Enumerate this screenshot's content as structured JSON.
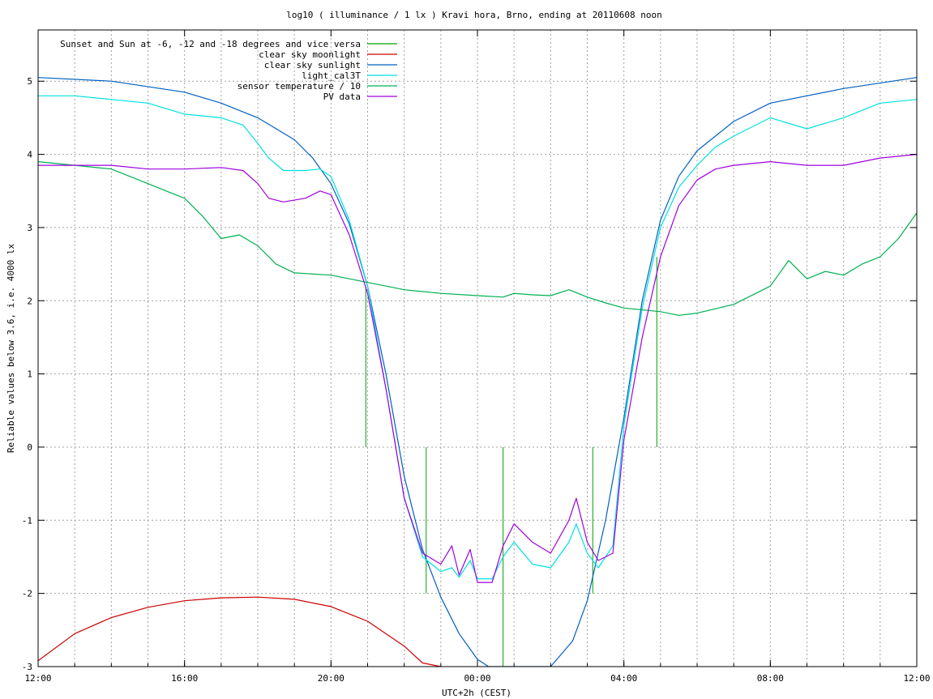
{
  "chart_data": {
    "type": "line",
    "title": "log10 ( illuminance / 1 lx ) Kravi hora, Brno, ending at 20110608 noon",
    "xlabel": "UTC+2h (CEST)",
    "ylabel": "Reliable values below 3.6, i.e. 4000 lx",
    "xlim": [
      12,
      36
    ],
    "ylim": [
      -3,
      5.7
    ],
    "grid": true,
    "legend_position": "top-left",
    "x_ticks": [
      {
        "v": 12,
        "label": "12:00"
      },
      {
        "v": 16,
        "label": "16:00"
      },
      {
        "v": 20,
        "label": "20:00"
      },
      {
        "v": 24,
        "label": "00:00"
      },
      {
        "v": 28,
        "label": "04:00"
      },
      {
        "v": 32,
        "label": "08:00"
      },
      {
        "v": 36,
        "label": "12:00"
      }
    ],
    "x_minor_step": 1,
    "y_ticks": [
      {
        "v": -3,
        "label": "-3"
      },
      {
        "v": -2,
        "label": "-2"
      },
      {
        "v": -1,
        "label": "-1"
      },
      {
        "v": 0,
        "label": "0"
      },
      {
        "v": 1,
        "label": "1"
      },
      {
        "v": 2,
        "label": "2"
      },
      {
        "v": 3,
        "label": "3"
      },
      {
        "v": 4,
        "label": "4"
      },
      {
        "v": 5,
        "label": "5"
      }
    ],
    "series": [
      {
        "name": "Sunset and Sun at -6, -12 and -18 degrees and vice versa",
        "color": "#00a000",
        "style": "impulses",
        "x": [
          20.95,
          21.63,
          22.6,
          24.7,
          27.15,
          28.1,
          28.9
        ],
        "y": [
          2.2,
          0.0,
          -2.0,
          -3.0,
          -2.0,
          0.0,
          2.6
        ]
      },
      {
        "name": "clear sky moonlight",
        "color": "#cc0000",
        "style": "line",
        "x": [
          12,
          13,
          14,
          15,
          16,
          17,
          18,
          19,
          20,
          21,
          22,
          22.5,
          23
        ],
        "y": [
          -2.92,
          -2.55,
          -2.33,
          -2.19,
          -2.1,
          -2.06,
          -2.05,
          -2.08,
          -2.18,
          -2.38,
          -2.72,
          -2.95,
          -3.0
        ]
      },
      {
        "name": "clear sky sunlight",
        "color": "#0060c0",
        "style": "line",
        "x": [
          12,
          14,
          16,
          17,
          18,
          19,
          19.5,
          20,
          20.5,
          21,
          21.5,
          22,
          22.5,
          23,
          23.5,
          24,
          24.3,
          26,
          26.6,
          27,
          27.5,
          28,
          28.5,
          29,
          29.5,
          30,
          30.5,
          31,
          32,
          34,
          36
        ],
        "y": [
          5.05,
          5.0,
          4.85,
          4.7,
          4.5,
          4.2,
          3.95,
          3.6,
          3.05,
          2.2,
          1.0,
          -0.4,
          -1.4,
          -2.05,
          -2.55,
          -2.9,
          -3.0,
          -3.0,
          -2.65,
          -2.1,
          -1.0,
          0.4,
          2.0,
          3.1,
          3.7,
          4.05,
          4.25,
          4.45,
          4.7,
          4.9,
          5.05
        ]
      },
      {
        "name": "light_cal3T",
        "color": "#00e0e0",
        "style": "line",
        "x": [
          12,
          13,
          14,
          15,
          16,
          17,
          17.6,
          18,
          18.3,
          18.7,
          19.3,
          19.7,
          20,
          20.5,
          21,
          21.5,
          22,
          22.5,
          23,
          23.3,
          23.5,
          23.8,
          24,
          24.4,
          24.7,
          25,
          25.5,
          26,
          26.5,
          26.7,
          27,
          27.3,
          27.7,
          28,
          28.5,
          29,
          29.5,
          30,
          30.5,
          31,
          32,
          33,
          34,
          35,
          36
        ],
        "y": [
          4.8,
          4.8,
          4.75,
          4.7,
          4.55,
          4.5,
          4.4,
          4.15,
          3.95,
          3.78,
          3.78,
          3.8,
          3.7,
          3.1,
          2.2,
          0.8,
          -0.7,
          -1.5,
          -1.7,
          -1.65,
          -1.78,
          -1.55,
          -1.8,
          -1.8,
          -1.5,
          -1.3,
          -1.6,
          -1.65,
          -1.3,
          -1.05,
          -1.45,
          -1.65,
          -1.35,
          0.3,
          1.9,
          3.0,
          3.55,
          3.85,
          4.1,
          4.25,
          4.5,
          4.35,
          4.5,
          4.7,
          4.75
        ]
      },
      {
        "name": "sensor temperature / 10",
        "color": "#00b050",
        "style": "line",
        "x": [
          12,
          13,
          14,
          15,
          15.5,
          16,
          16.5,
          17,
          17.5,
          18,
          18.5,
          19,
          20,
          21,
          22,
          23,
          24,
          24.7,
          25,
          25.5,
          26,
          26.5,
          27,
          27.5,
          28,
          29,
          29.5,
          30,
          31,
          32,
          32.5,
          33,
          33.5,
          34,
          34.5,
          35,
          35.5,
          36
        ],
        "y": [
          3.9,
          3.85,
          3.8,
          3.6,
          3.5,
          3.4,
          3.15,
          2.85,
          2.9,
          2.75,
          2.5,
          2.38,
          2.35,
          2.25,
          2.15,
          2.1,
          2.07,
          2.05,
          2.1,
          2.08,
          2.07,
          2.15,
          2.05,
          1.97,
          1.9,
          1.85,
          1.8,
          1.83,
          1.95,
          2.2,
          2.55,
          2.3,
          2.4,
          2.35,
          2.5,
          2.6,
          2.85,
          3.2
        ]
      },
      {
        "name": "PV data",
        "color": "#a000e0",
        "style": "line",
        "x": [
          12,
          13,
          14,
          15,
          16,
          17,
          17.6,
          18,
          18.3,
          18.7,
          19.3,
          19.7,
          20,
          20.5,
          21,
          21.5,
          22,
          22.5,
          23,
          23.3,
          23.5,
          23.8,
          24,
          24.4,
          24.7,
          25,
          25.5,
          26,
          26.5,
          26.7,
          27,
          27.3,
          27.7,
          28,
          28.5,
          29,
          29.5,
          30,
          30.5,
          31,
          32,
          33,
          34,
          35,
          36
        ],
        "y": [
          3.85,
          3.85,
          3.85,
          3.8,
          3.8,
          3.82,
          3.78,
          3.6,
          3.4,
          3.35,
          3.4,
          3.5,
          3.45,
          2.9,
          2.1,
          0.8,
          -0.7,
          -1.45,
          -1.6,
          -1.35,
          -1.75,
          -1.4,
          -1.85,
          -1.85,
          -1.35,
          -1.05,
          -1.3,
          -1.45,
          -1.0,
          -0.7,
          -1.3,
          -1.55,
          -1.45,
          0.1,
          1.5,
          2.6,
          3.3,
          3.65,
          3.8,
          3.85,
          3.9,
          3.85,
          3.85,
          3.95,
          4.0
        ]
      }
    ]
  }
}
